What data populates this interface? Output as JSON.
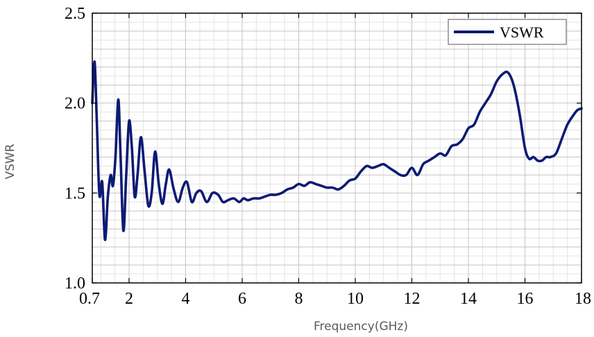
{
  "chart_data": {
    "type": "line",
    "title": "",
    "xlabel": "Frequency(GHz)",
    "ylabel": "VSWR",
    "xlim": [
      0.7,
      18
    ],
    "ylim": [
      1.0,
      2.5
    ],
    "x_ticks": [
      0.7,
      2,
      4,
      6,
      8,
      10,
      12,
      14,
      16,
      18
    ],
    "x_tick_labels": [
      "0.7",
      "2",
      "4",
      "6",
      "8",
      "10",
      "12",
      "14",
      "16",
      "18"
    ],
    "y_ticks": [
      1.0,
      1.5,
      2.0,
      2.5
    ],
    "y_tick_labels": [
      "1.0",
      "1.5",
      "2.0",
      "2.5"
    ],
    "grid": true,
    "legend": "top-right",
    "series": [
      {
        "name": "VSWR",
        "color": "#0d1a73",
        "x": [
          0.7,
          0.78,
          0.86,
          0.95,
          1.05,
          1.15,
          1.25,
          1.35,
          1.43,
          1.52,
          1.62,
          1.7,
          1.8,
          1.9,
          2.0,
          2.1,
          2.2,
          2.3,
          2.42,
          2.55,
          2.68,
          2.8,
          2.92,
          3.05,
          3.18,
          3.3,
          3.42,
          3.58,
          3.74,
          3.9,
          4.05,
          4.22,
          4.38,
          4.55,
          4.75,
          4.95,
          5.15,
          5.32,
          5.5,
          5.7,
          5.9,
          6.05,
          6.2,
          6.4,
          6.6,
          6.8,
          7.0,
          7.2,
          7.4,
          7.6,
          7.8,
          8.0,
          8.2,
          8.4,
          8.6,
          8.8,
          9.0,
          9.2,
          9.4,
          9.6,
          9.8,
          10.0,
          10.2,
          10.4,
          10.6,
          10.8,
          11.0,
          11.2,
          11.4,
          11.6,
          11.8,
          12.0,
          12.2,
          12.4,
          12.6,
          12.8,
          13.0,
          13.2,
          13.4,
          13.6,
          13.8,
          14.0,
          14.2,
          14.4,
          14.6,
          14.8,
          15.0,
          15.2,
          15.4,
          15.6,
          15.8,
          16.0,
          16.15,
          16.3,
          16.45,
          16.6,
          16.75,
          16.9,
          17.1,
          17.3,
          17.5,
          17.7,
          17.85,
          18.0
        ],
        "y": [
          2.0,
          2.23,
          1.9,
          1.49,
          1.56,
          1.24,
          1.48,
          1.6,
          1.54,
          1.7,
          2.02,
          1.7,
          1.29,
          1.6,
          1.9,
          1.75,
          1.48,
          1.6,
          1.81,
          1.62,
          1.43,
          1.5,
          1.73,
          1.55,
          1.44,
          1.55,
          1.63,
          1.52,
          1.45,
          1.53,
          1.56,
          1.45,
          1.5,
          1.51,
          1.45,
          1.5,
          1.49,
          1.45,
          1.46,
          1.47,
          1.45,
          1.47,
          1.46,
          1.47,
          1.47,
          1.48,
          1.49,
          1.49,
          1.5,
          1.52,
          1.53,
          1.55,
          1.54,
          1.56,
          1.55,
          1.54,
          1.53,
          1.53,
          1.52,
          1.54,
          1.57,
          1.58,
          1.62,
          1.65,
          1.64,
          1.65,
          1.66,
          1.64,
          1.62,
          1.6,
          1.6,
          1.64,
          1.6,
          1.66,
          1.68,
          1.7,
          1.72,
          1.71,
          1.76,
          1.77,
          1.8,
          1.86,
          1.88,
          1.95,
          2.0,
          2.05,
          2.12,
          2.16,
          2.17,
          2.1,
          1.95,
          1.75,
          1.69,
          1.7,
          1.68,
          1.68,
          1.7,
          1.7,
          1.72,
          1.8,
          1.88,
          1.93,
          1.96,
          1.97
        ]
      }
    ]
  }
}
